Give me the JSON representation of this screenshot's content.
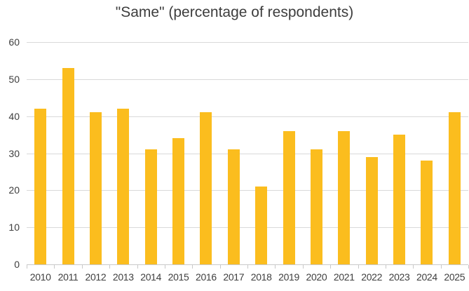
{
  "chart_data": {
    "type": "bar",
    "title": "\"Same\" (percentage of respondents)",
    "categories": [
      "2010",
      "2011",
      "2012",
      "2013",
      "2014",
      "2015",
      "2016",
      "2017",
      "2018",
      "2019",
      "2020",
      "2021",
      "2022",
      "2023",
      "2024",
      "2025"
    ],
    "values": [
      42,
      53,
      41,
      42,
      31,
      34,
      41,
      31,
      21,
      36,
      31,
      36,
      29,
      35,
      28,
      41
    ],
    "xlabel": "",
    "ylabel": "",
    "ylim": [
      0,
      60
    ],
    "yticks": [
      0,
      10,
      20,
      30,
      40,
      50,
      60
    ],
    "grid": true,
    "legend": false
  },
  "colors": {
    "bar": "#fbbd1e",
    "gridline": "#d9d9d9",
    "axis_line": "#c9c9c9",
    "text": "#3e3e3e"
  }
}
